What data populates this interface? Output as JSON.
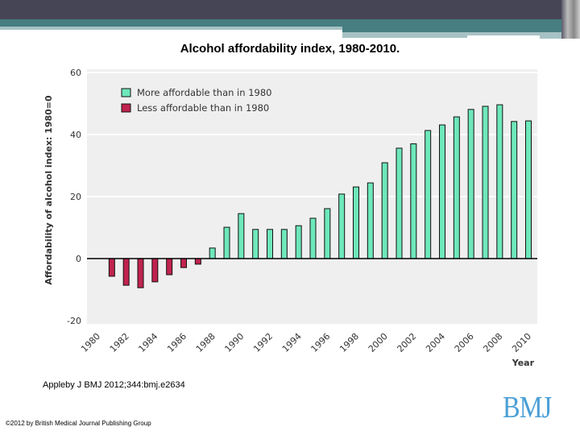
{
  "slide": {
    "title": "Alcohol affordability index, 1980-2010.",
    "citation": "Appleby J BMJ 2012;344:bmj.e2634",
    "copyright": "©2012 by British Medical Journal Publishing Group",
    "logo_text": "BMJ"
  },
  "chart_data": {
    "type": "bar",
    "title": "",
    "xlabel": "Year",
    "ylabel": "Affordability of alcohol index: 1980=0",
    "ylim": [
      -20,
      60
    ],
    "yticks": [
      -20,
      0,
      20,
      40,
      60
    ],
    "xtick_labels": [
      "1980",
      "1982",
      "1984",
      "1986",
      "1988",
      "1990",
      "1992",
      "1994",
      "1996",
      "1998",
      "2000",
      "2002",
      "2004",
      "2006",
      "2008",
      "2010"
    ],
    "grid": true,
    "legend_position": "top-left",
    "legend": [
      {
        "label": "More affordable than in 1980",
        "color": "#6ee8bb"
      },
      {
        "label": "Less affordable than in 1980",
        "color": "#c0234e"
      }
    ],
    "categories": [
      1980,
      1981,
      1982,
      1983,
      1984,
      1985,
      1986,
      1987,
      1988,
      1989,
      1990,
      1991,
      1992,
      1993,
      1994,
      1995,
      1996,
      1997,
      1998,
      1999,
      2000,
      2001,
      2002,
      2003,
      2004,
      2005,
      2006,
      2007,
      2008,
      2009,
      2010
    ],
    "values": [
      0,
      -5.7,
      -8.6,
      -9.4,
      -7.5,
      -5.2,
      -2.9,
      -1.8,
      3.4,
      10.1,
      14.5,
      9.4,
      9.4,
      9.4,
      10.6,
      13.0,
      16.1,
      20.8,
      23.1,
      24.4,
      30.9,
      35.6,
      37.0,
      41.3,
      43.1,
      45.7,
      48.1,
      49.1,
      49.6,
      44.2,
      44.4
    ]
  }
}
